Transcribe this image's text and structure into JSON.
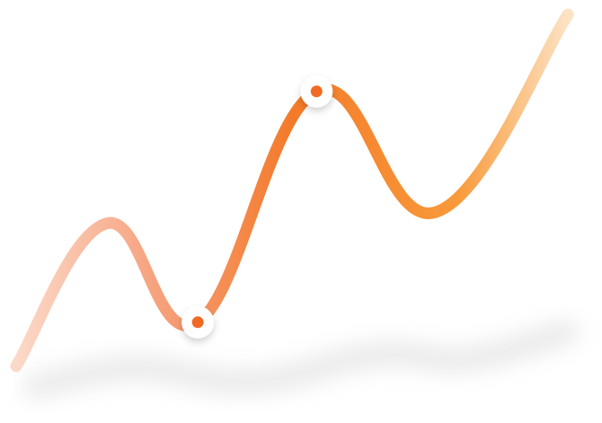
{
  "chart_data": {
    "type": "line",
    "title": "",
    "xlabel": "",
    "ylabel": "",
    "grid": false,
    "legend": "none",
    "x": [
      0,
      1,
      2,
      3,
      4,
      5,
      6,
      7,
      8
    ],
    "xlim": [
      0,
      8
    ],
    "ylim": [
      0,
      10
    ],
    "series": [
      {
        "values": [
          0.3,
          4.2,
          1.5,
          7.8,
          4.5,
          9.9
        ],
        "x": [
          0,
          1.3,
          2.6,
          4.3,
          6.0,
          7.9
        ]
      }
    ],
    "highlighted_points": [
      {
        "x": 2.6,
        "y": 1.5
      },
      {
        "x": 4.3,
        "y": 7.8
      }
    ]
  },
  "colors": {
    "line_start": "#FBD9C8",
    "line_light": "#F6A27F",
    "line_main": "#F47A2A",
    "line_mid": "#F89A3A",
    "line_end": "#FDE3C4",
    "marker_ring": "#ffffff",
    "marker_dot": "#F06A23",
    "shadow": "#d9d9d9"
  }
}
